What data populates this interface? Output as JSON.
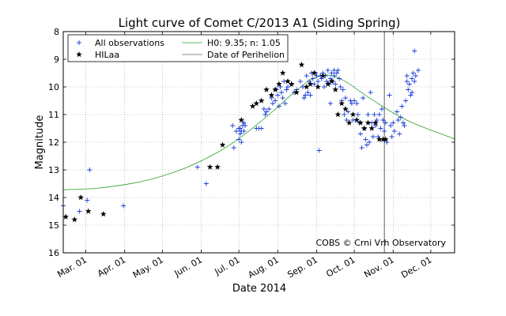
{
  "chart_data": {
    "type": "scatter",
    "title": "Light curve of Comet C/2013 A1 (Siding Spring)",
    "xlabel": "Date 2014",
    "ylabel": "Magnitude",
    "x_range": [
      "2014-02-11",
      "2014-12-20"
    ],
    "y_range": [
      8,
      16
    ],
    "y_inverted": true,
    "x_ticks": [
      {
        "date": "2014-03-01",
        "label": "Mar. 01"
      },
      {
        "date": "2014-04-01",
        "label": "Apr. 01"
      },
      {
        "date": "2014-05-01",
        "label": "May. 01"
      },
      {
        "date": "2014-06-01",
        "label": "Jun. 01"
      },
      {
        "date": "2014-07-01",
        "label": "Jul. 01"
      },
      {
        "date": "2014-08-01",
        "label": "Aug. 01"
      },
      {
        "date": "2014-09-01",
        "label": "Sep. 01"
      },
      {
        "date": "2014-10-01",
        "label": "Oct. 01"
      },
      {
        "date": "2014-11-01",
        "label": "Nov. 01"
      },
      {
        "date": "2014-12-01",
        "label": "Dec. 01"
      }
    ],
    "y_ticks": [
      "8",
      "9",
      "10",
      "11",
      "12",
      "13",
      "14",
      "15",
      "16"
    ],
    "grid": true,
    "legend_position": "top-left",
    "credit": "COBS © Crni Vrh Observatory",
    "series": [
      {
        "name": "All observations",
        "marker": "plus",
        "color": "#1f3fd6",
        "points": [
          [
            "2014-02-11",
            14.3
          ],
          [
            "2014-02-24",
            14.5
          ],
          [
            "2014-03-02",
            14.1
          ],
          [
            "2014-03-04",
            13.0
          ],
          [
            "2014-03-31",
            14.3
          ],
          [
            "2014-05-29",
            12.9
          ],
          [
            "2014-06-05",
            13.5
          ],
          [
            "2014-06-26",
            11.4
          ],
          [
            "2014-06-27",
            12.2
          ],
          [
            "2014-06-29",
            11.6
          ],
          [
            "2014-07-01",
            11.5
          ],
          [
            "2014-07-01",
            11.9
          ],
          [
            "2014-07-02",
            11.7
          ],
          [
            "2014-07-02",
            11.5
          ],
          [
            "2014-07-03",
            12.0
          ],
          [
            "2014-07-03",
            11.6
          ],
          [
            "2014-07-04",
            11.4
          ],
          [
            "2014-07-05",
            11.6
          ],
          [
            "2014-07-05",
            11.3
          ],
          [
            "2014-07-06",
            11.4
          ],
          [
            "2014-07-15",
            11.5
          ],
          [
            "2014-07-17",
            11.5
          ],
          [
            "2014-07-19",
            11.5
          ],
          [
            "2014-07-21",
            10.8
          ],
          [
            "2014-07-22",
            11.0
          ],
          [
            "2014-07-23",
            10.9
          ],
          [
            "2014-07-25",
            10.8
          ],
          [
            "2014-07-27",
            10.4
          ],
          [
            "2014-07-28",
            10.6
          ],
          [
            "2014-07-30",
            10.5
          ],
          [
            "2014-07-31",
            10.1
          ],
          [
            "2014-08-01",
            10.3
          ],
          [
            "2014-08-02",
            10.7
          ],
          [
            "2014-08-03",
            10.0
          ],
          [
            "2014-08-04",
            10.2
          ],
          [
            "2014-08-05",
            10.4
          ],
          [
            "2014-08-06",
            9.8
          ],
          [
            "2014-08-07",
            10.6
          ],
          [
            "2014-08-08",
            10.1
          ],
          [
            "2014-08-09",
            10.0
          ],
          [
            "2014-08-12",
            9.9
          ],
          [
            "2014-08-14",
            10.2
          ],
          [
            "2014-08-16",
            10.1
          ],
          [
            "2014-08-19",
            9.8
          ],
          [
            "2014-08-21",
            10.0
          ],
          [
            "2014-08-22",
            10.4
          ],
          [
            "2014-08-23",
            10.3
          ],
          [
            "2014-08-24",
            9.6
          ],
          [
            "2014-08-25",
            10.2
          ],
          [
            "2014-08-26",
            9.8
          ],
          [
            "2014-08-27",
            10.3
          ],
          [
            "2014-08-28",
            9.5
          ],
          [
            "2014-08-29",
            9.7
          ],
          [
            "2014-08-30",
            9.9
          ],
          [
            "2014-08-31",
            9.5
          ],
          [
            "2014-09-01",
            9.6
          ],
          [
            "2014-09-02",
            9.8
          ],
          [
            "2014-09-03",
            12.3
          ],
          [
            "2014-09-04",
            9.6
          ],
          [
            "2014-09-05",
            9.7
          ],
          [
            "2014-09-06",
            9.5
          ],
          [
            "2014-09-07",
            10.0
          ],
          [
            "2014-09-08",
            9.6
          ],
          [
            "2014-09-09",
            9.8
          ],
          [
            "2014-09-10",
            9.4
          ],
          [
            "2014-09-11",
            9.9
          ],
          [
            "2014-09-12",
            10.6
          ],
          [
            "2014-09-12",
            9.7
          ],
          [
            "2014-09-13",
            9.5
          ],
          [
            "2014-09-14",
            9.8
          ],
          [
            "2014-09-15",
            9.6
          ],
          [
            "2014-09-15",
            9.4
          ],
          [
            "2014-09-16",
            9.9
          ],
          [
            "2014-09-17",
            9.5
          ],
          [
            "2014-09-18",
            9.4
          ],
          [
            "2014-09-19",
            9.7
          ],
          [
            "2014-09-20",
            10.0
          ],
          [
            "2014-09-21",
            10.5
          ],
          [
            "2014-09-22",
            10.1
          ],
          [
            "2014-09-23",
            11.0
          ],
          [
            "2014-09-24",
            10.4
          ],
          [
            "2014-09-25",
            11.2
          ],
          [
            "2014-09-26",
            10.9
          ],
          [
            "2014-09-28",
            10.5
          ],
          [
            "2014-09-29",
            10.6
          ],
          [
            "2014-09-30",
            11.2
          ],
          [
            "2014-10-01",
            10.5
          ],
          [
            "2014-10-03",
            10.6
          ],
          [
            "2014-10-04",
            11.0
          ],
          [
            "2014-10-05",
            11.3
          ],
          [
            "2014-10-06",
            11.7
          ],
          [
            "2014-10-07",
            12.2
          ],
          [
            "2014-10-08",
            10.4
          ],
          [
            "2014-10-09",
            11.5
          ],
          [
            "2014-10-10",
            11.9
          ],
          [
            "2014-10-11",
            12.1
          ],
          [
            "2014-10-12",
            11.0
          ],
          [
            "2014-10-13",
            12.0
          ],
          [
            "2014-10-14",
            10.2
          ],
          [
            "2014-10-15",
            11.3
          ],
          [
            "2014-10-16",
            11.8
          ],
          [
            "2014-10-17",
            11.0
          ],
          [
            "2014-10-18",
            11.4
          ],
          [
            "2014-10-19",
            11.2
          ],
          [
            "2014-10-20",
            11.8
          ],
          [
            "2014-10-21",
            11.0
          ],
          [
            "2014-10-22",
            11.5
          ],
          [
            "2014-10-23",
            10.8
          ],
          [
            "2014-10-24",
            11.2
          ],
          [
            "2014-10-25",
            11.6
          ],
          [
            "2014-10-26",
            11.3
          ],
          [
            "2014-10-27",
            12.0
          ],
          [
            "2014-10-29",
            10.3
          ],
          [
            "2014-10-30",
            11.4
          ],
          [
            "2014-10-31",
            11.8
          ],
          [
            "2014-11-01",
            11.3
          ],
          [
            "2014-11-02",
            11.6
          ],
          [
            "2014-11-04",
            10.9
          ],
          [
            "2014-11-05",
            11.2
          ],
          [
            "2014-11-06",
            11.7
          ],
          [
            "2014-11-07",
            11.1
          ],
          [
            "2014-11-08",
            10.7
          ],
          [
            "2014-11-09",
            11.3
          ],
          [
            "2014-11-10",
            11.4
          ],
          [
            "2014-11-11",
            10.5
          ],
          [
            "2014-11-12",
            9.6
          ],
          [
            "2014-11-12",
            9.8
          ],
          [
            "2014-11-13",
            10.1
          ],
          [
            "2014-11-14",
            9.9
          ],
          [
            "2014-11-15",
            10.3
          ],
          [
            "2014-11-16",
            10.2
          ],
          [
            "2014-11-16",
            9.7
          ],
          [
            "2014-11-17",
            9.5
          ],
          [
            "2014-11-18",
            9.8
          ],
          [
            "2014-11-18",
            8.7
          ],
          [
            "2014-11-19",
            9.6
          ],
          [
            "2014-11-21",
            9.4
          ]
        ]
      },
      {
        "name": "HILaa",
        "marker": "star",
        "color": "#000000",
        "points": [
          [
            "2014-02-13",
            14.7
          ],
          [
            "2014-02-20",
            14.8
          ],
          [
            "2014-02-25",
            14.0
          ],
          [
            "2014-03-03",
            14.5
          ],
          [
            "2014-03-15",
            14.6
          ],
          [
            "2014-06-08",
            12.9
          ],
          [
            "2014-06-14",
            12.9
          ],
          [
            "2014-06-18",
            12.1
          ],
          [
            "2014-07-03",
            11.2
          ],
          [
            "2014-07-12",
            10.7
          ],
          [
            "2014-07-15",
            10.6
          ],
          [
            "2014-07-19",
            10.5
          ],
          [
            "2014-07-23",
            10.1
          ],
          [
            "2014-07-27",
            10.3
          ],
          [
            "2014-07-30",
            10.1
          ],
          [
            "2014-08-02",
            9.9
          ],
          [
            "2014-08-05",
            9.5
          ],
          [
            "2014-08-09",
            9.8
          ],
          [
            "2014-08-12",
            9.9
          ],
          [
            "2014-08-16",
            10.2
          ],
          [
            "2014-08-20",
            9.2
          ],
          [
            "2014-08-24",
            10.0
          ],
          [
            "2014-08-27",
            9.9
          ],
          [
            "2014-08-30",
            9.5
          ],
          [
            "2014-09-02",
            10.0
          ],
          [
            "2014-09-06",
            9.6
          ],
          [
            "2014-09-10",
            9.9
          ],
          [
            "2014-09-13",
            9.8
          ],
          [
            "2014-09-16",
            10.1
          ],
          [
            "2014-09-18",
            11.0
          ],
          [
            "2014-09-21",
            10.6
          ],
          [
            "2014-09-24",
            10.8
          ],
          [
            "2014-09-27",
            11.3
          ],
          [
            "2014-09-30",
            11.0
          ],
          [
            "2014-10-03",
            11.2
          ],
          [
            "2014-10-06",
            11.3
          ],
          [
            "2014-10-09",
            11.5
          ],
          [
            "2014-10-12",
            11.3
          ],
          [
            "2014-10-15",
            11.5
          ],
          [
            "2014-10-18",
            11.3
          ],
          [
            "2014-10-21",
            11.9
          ],
          [
            "2014-10-24",
            11.9
          ],
          [
            "2014-10-26",
            11.9
          ]
        ]
      },
      {
        "name": "H0: 9.35; n: 1.05",
        "type": "line",
        "color": "#2ca02c",
        "points": [
          [
            "2014-02-11",
            13.72
          ],
          [
            "2014-02-25",
            13.7
          ],
          [
            "2014-03-11",
            13.66
          ],
          [
            "2014-03-25",
            13.58
          ],
          [
            "2014-04-08",
            13.48
          ],
          [
            "2014-04-22",
            13.34
          ],
          [
            "2014-05-06",
            13.15
          ],
          [
            "2014-05-20",
            12.92
          ],
          [
            "2014-06-03",
            12.63
          ],
          [
            "2014-06-17",
            12.29
          ],
          [
            "2014-07-01",
            11.87
          ],
          [
            "2014-07-15",
            11.38
          ],
          [
            "2014-07-29",
            10.85
          ],
          [
            "2014-08-12",
            10.28
          ],
          [
            "2014-08-26",
            9.78
          ],
          [
            "2014-09-09",
            9.57
          ],
          [
            "2014-09-23",
            9.78
          ],
          [
            "2014-10-07",
            10.21
          ],
          [
            "2014-10-21",
            10.63
          ],
          [
            "2014-11-04",
            11.02
          ],
          [
            "2014-11-18",
            11.33
          ],
          [
            "2014-12-02",
            11.58
          ],
          [
            "2014-12-20",
            11.88
          ]
        ]
      },
      {
        "name": "Date of Perihelion",
        "type": "vline",
        "color": "#606060",
        "date": "2014-10-25"
      }
    ]
  }
}
